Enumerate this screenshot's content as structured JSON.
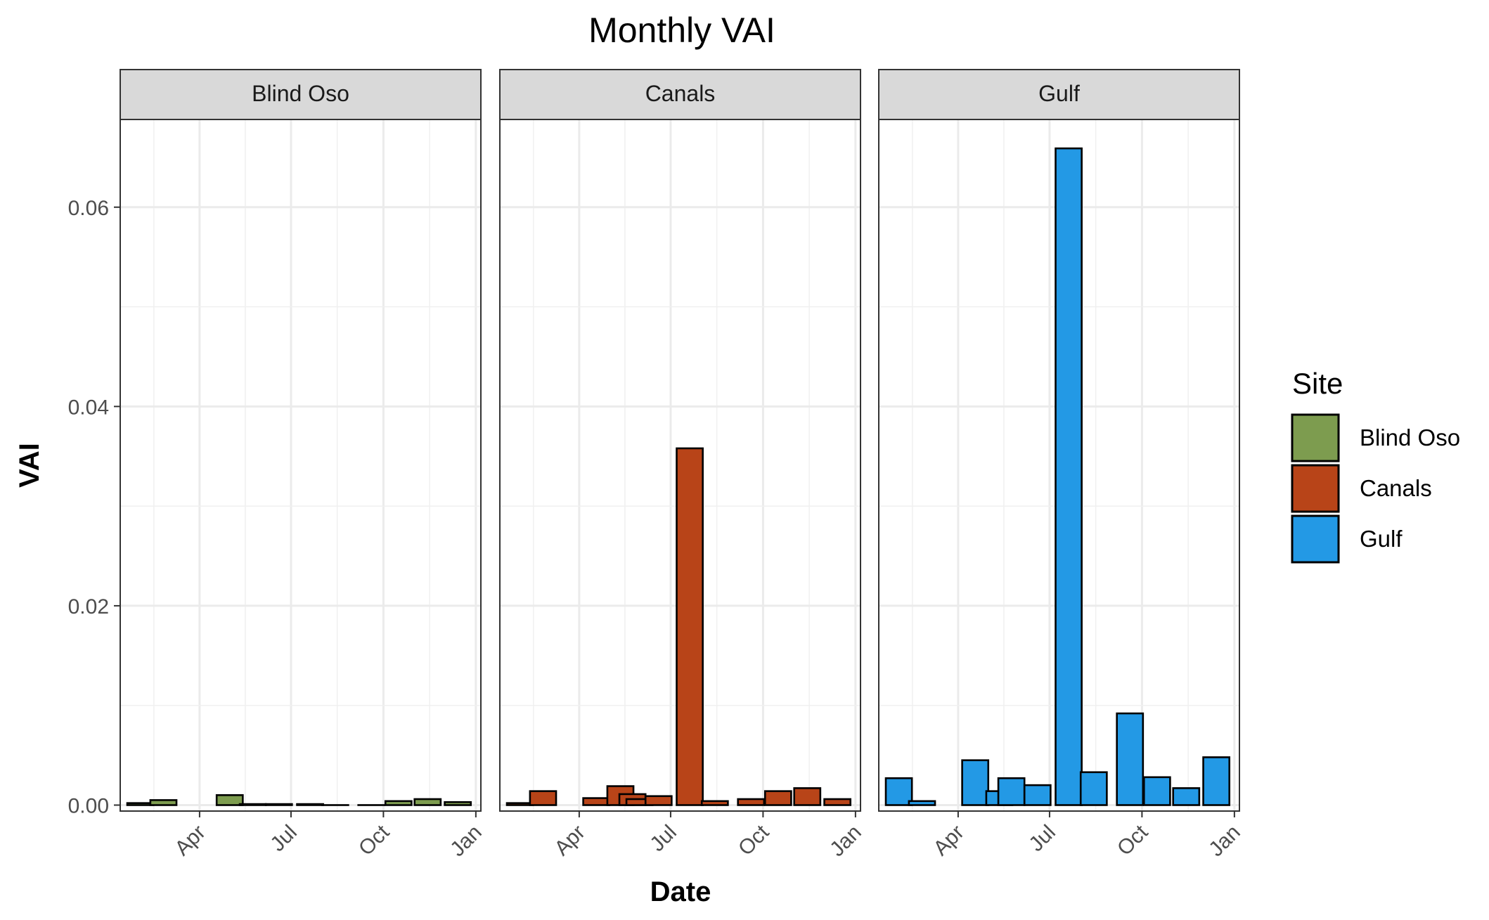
{
  "chart_data": {
    "type": "bar",
    "title": "Monthly VAI",
    "xlabel": "Date",
    "ylabel": "VAI",
    "ylim": [
      -0.0006,
      0.0688
    ],
    "x_axis_kind": "date",
    "x_range": [
      "2021-01-12",
      "2022-01-06"
    ],
    "x_ticks": [
      {
        "date": "2021-04-01",
        "label": "Apr"
      },
      {
        "date": "2021-07-01",
        "label": "Jul"
      },
      {
        "date": "2021-10-01",
        "label": "Oct"
      },
      {
        "date": "2022-01-01",
        "label": "Jan"
      }
    ],
    "y_ticks": [
      {
        "value": 0.0,
        "label": "0.00"
      },
      {
        "value": 0.02,
        "label": "0.02"
      },
      {
        "value": 0.04,
        "label": "0.04"
      },
      {
        "value": 0.06,
        "label": "0.06"
      }
    ],
    "grid": true,
    "legend": {
      "title": "Site",
      "position": "right"
    },
    "panels": [
      {
        "name": "Blind Oso",
        "color": "#7d9c4f",
        "bars": [
          {
            "date": "2021-02-01",
            "value": 0.0002
          },
          {
            "date": "2021-02-24",
            "value": 0.0005
          },
          {
            "date": "2021-05-01",
            "value": 0.001
          },
          {
            "date": "2021-05-24",
            "value": 0.0001
          },
          {
            "date": "2021-06-19",
            "value": 0.0001
          },
          {
            "date": "2021-07-20",
            "value": 0.0001
          },
          {
            "date": "2021-08-14",
            "value": 0.0
          },
          {
            "date": "2021-09-19",
            "value": 0.0
          },
          {
            "date": "2021-10-16",
            "value": 0.0004
          },
          {
            "date": "2021-11-14",
            "value": 0.0006
          },
          {
            "date": "2021-12-14",
            "value": 0.0003
          }
        ]
      },
      {
        "name": "Canals",
        "color": "#b84418",
        "bars": [
          {
            "date": "2021-02-01",
            "value": 0.0002
          },
          {
            "date": "2021-02-24",
            "value": 0.0014
          },
          {
            "date": "2021-04-18",
            "value": 0.0007
          },
          {
            "date": "2021-05-12",
            "value": 0.0019
          },
          {
            "date": "2021-05-24",
            "value": 0.0011
          },
          {
            "date": "2021-05-31",
            "value": 0.0006
          },
          {
            "date": "2021-06-19",
            "value": 0.0009
          },
          {
            "date": "2021-07-20",
            "value": 0.0358
          },
          {
            "date": "2021-08-14",
            "value": 0.0004
          },
          {
            "date": "2021-09-19",
            "value": 0.0006
          },
          {
            "date": "2021-10-16",
            "value": 0.0014
          },
          {
            "date": "2021-11-14",
            "value": 0.0017
          },
          {
            "date": "2021-12-14",
            "value": 0.0006
          }
        ]
      },
      {
        "name": "Gulf",
        "color": "#2399e5",
        "bars": [
          {
            "date": "2021-02-01",
            "value": 0.0027
          },
          {
            "date": "2021-02-24",
            "value": 0.0004
          },
          {
            "date": "2021-04-18",
            "value": 0.0045
          },
          {
            "date": "2021-05-12",
            "value": 0.0014
          },
          {
            "date": "2021-05-24",
            "value": 0.0027
          },
          {
            "date": "2021-06-19",
            "value": 0.002
          },
          {
            "date": "2021-07-20",
            "value": 0.0659
          },
          {
            "date": "2021-08-14",
            "value": 0.0033
          },
          {
            "date": "2021-09-19",
            "value": 0.0092
          },
          {
            "date": "2021-10-16",
            "value": 0.0028
          },
          {
            "date": "2021-11-14",
            "value": 0.0017
          },
          {
            "date": "2021-12-14",
            "value": 0.0048
          }
        ]
      }
    ]
  }
}
